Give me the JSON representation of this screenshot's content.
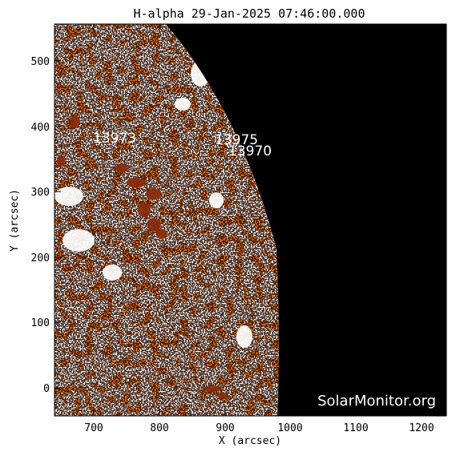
{
  "title": "H-alpha 29-Jan-2025 07:46:00.000",
  "xlabel": "X (arcsec)",
  "ylabel": "Y (arcsec)",
  "x_ticks": [
    "700",
    "800",
    "900",
    "1000",
    "1100",
    "1200"
  ],
  "y_ticks": [
    "0",
    "100",
    "200",
    "300",
    "400",
    "500"
  ],
  "regions": [
    "13973",
    "13975",
    "13970"
  ],
  "watermark": "SolarMonitor.org",
  "colors": {
    "sky": "#000000",
    "disk_base": "#f07a28",
    "disk_light": "#ffffff",
    "disk_dark": "#4a1403",
    "filament": "#8a2a0a"
  }
}
